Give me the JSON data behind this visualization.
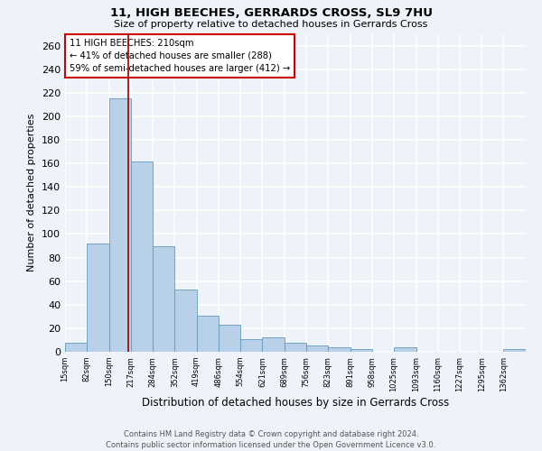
{
  "title1": "11, HIGH BEECHES, GERRARDS CROSS, SL9 7HU",
  "title2": "Size of property relative to detached houses in Gerrards Cross",
  "xlabel": "Distribution of detached houses by size in Gerrards Cross",
  "ylabel": "Number of detached properties",
  "footer1": "Contains HM Land Registry data © Crown copyright and database right 2024.",
  "footer2": "Contains public sector information licensed under the Open Government Licence v3.0.",
  "annotation_line1": "11 HIGH BEECHES: 210sqm",
  "annotation_line2": "← 41% of detached houses are smaller (288)",
  "annotation_line3": "59% of semi-detached houses are larger (412) →",
  "bar_color": "#b8d0e8",
  "bar_edge_color": "#6699bb",
  "vline_color": "#990000",
  "vline_x": 210,
  "bins": [
    15,
    82,
    150,
    217,
    284,
    352,
    419,
    486,
    554,
    621,
    689,
    756,
    823,
    891,
    958,
    1025,
    1093,
    1160,
    1227,
    1295,
    1362,
    1430
  ],
  "bar_heights": [
    8,
    92,
    215,
    162,
    90,
    53,
    31,
    23,
    11,
    12,
    8,
    5,
    4,
    2,
    0,
    4,
    0,
    0,
    0,
    0,
    2
  ],
  "tick_labels": [
    "15sqm",
    "82sqm",
    "150sqm",
    "217sqm",
    "284sqm",
    "352sqm",
    "419sqm",
    "486sqm",
    "554sqm",
    "621sqm",
    "689sqm",
    "756sqm",
    "823sqm",
    "891sqm",
    "958sqm",
    "1025sqm",
    "1093sqm",
    "1160sqm",
    "1227sqm",
    "1295sqm",
    "1362sqm"
  ],
  "ylim": [
    0,
    270
  ],
  "background_color": "#eef2f9",
  "grid_color": "#ffffff",
  "annotation_box_color": "#ffffff",
  "annotation_box_edge": "#cc0000",
  "yticks": [
    0,
    20,
    40,
    60,
    80,
    100,
    120,
    140,
    160,
    180,
    200,
    220,
    240,
    260
  ]
}
